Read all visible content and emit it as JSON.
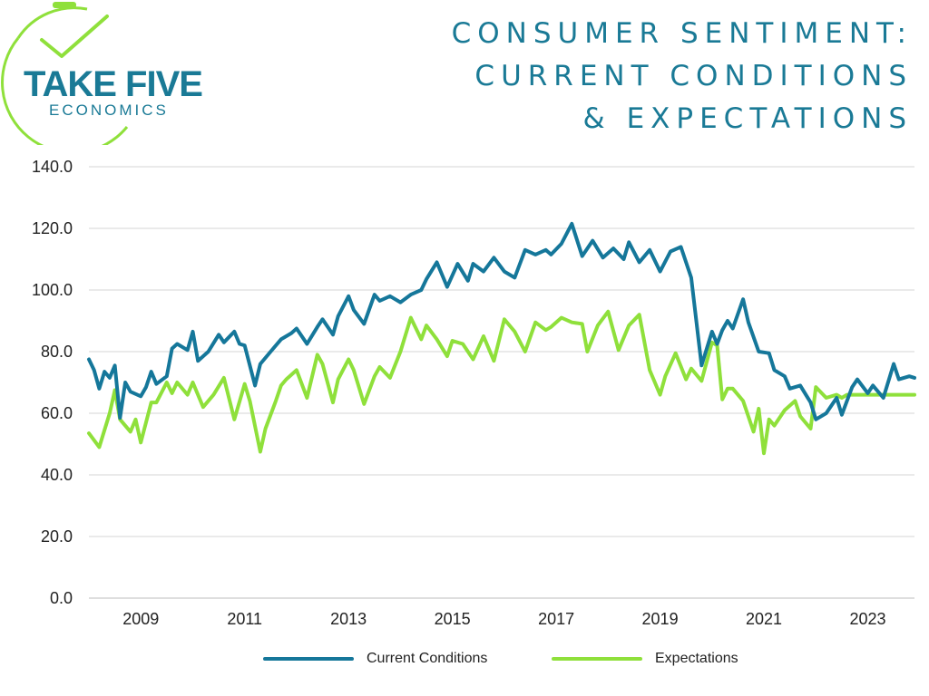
{
  "logo": {
    "name_top": "TAKE FIVE",
    "name_bottom": "ECONOMICS"
  },
  "title_lines": [
    "CONSUMER SENTIMENT:",
    "CURRENT CONDITIONS",
    "& EXPECTATIONS"
  ],
  "colors": {
    "current": "#15779a",
    "expectations": "#8fe03b",
    "grid": "#d6d6d6",
    "title": "#1a7a96"
  },
  "legend": {
    "current": "Current Conditions",
    "expectations": "Expectations"
  },
  "chart_data": {
    "type": "line",
    "title": "Consumer Sentiment: Current Conditions & Expectations",
    "xlabel": "",
    "ylabel": "",
    "ylim": [
      0,
      140
    ],
    "y_ticks": [
      "0.0",
      "20.0",
      "40.0",
      "60.0",
      "80.0",
      "100.0",
      "120.0",
      "140.0"
    ],
    "x_ticks": [
      "2009",
      "2011",
      "2013",
      "2015",
      "2017",
      "2019",
      "2021",
      "2023"
    ],
    "x_tick_positions": [
      2009.0,
      2011.0,
      2013.0,
      2015.0,
      2017.0,
      2019.0,
      2021.0,
      2023.0
    ],
    "xlim": [
      2008.0,
      2023.9
    ],
    "grid": true,
    "legend_position": "bottom",
    "series": [
      {
        "name": "Current Conditions",
        "x": [
          2008.0,
          2008.1,
          2008.2,
          2008.3,
          2008.4,
          2008.5,
          2008.6,
          2008.7,
          2008.8,
          2009.0,
          2009.1,
          2009.2,
          2009.3,
          2009.5,
          2009.6,
          2009.7,
          2009.9,
          2010.0,
          2010.1,
          2010.3,
          2010.5,
          2010.6,
          2010.8,
          2010.9,
          2011.0,
          2011.2,
          2011.3,
          2011.5,
          2011.7,
          2011.9,
          2012.0,
          2012.2,
          2012.4,
          2012.5,
          2012.7,
          2012.8,
          2013.0,
          2013.1,
          2013.3,
          2013.5,
          2013.6,
          2013.8,
          2014.0,
          2014.2,
          2014.4,
          2014.5,
          2014.7,
          2014.9,
          2015.1,
          2015.3,
          2015.4,
          2015.6,
          2015.8,
          2016.0,
          2016.2,
          2016.4,
          2016.6,
          2016.8,
          2016.9,
          2017.1,
          2017.3,
          2017.5,
          2017.7,
          2017.9,
          2018.1,
          2018.3,
          2018.4,
          2018.6,
          2018.8,
          2019.0,
          2019.2,
          2019.4,
          2019.6,
          2019.8,
          2020.0,
          2020.1,
          2020.2,
          2020.3,
          2020.4,
          2020.6,
          2020.7,
          2020.9,
          2021.1,
          2021.2,
          2021.4,
          2021.5,
          2021.7,
          2021.9,
          2022.0,
          2022.2,
          2022.4,
          2022.5,
          2022.7,
          2022.8,
          2023.0,
          2023.1,
          2023.3,
          2023.5,
          2023.6,
          2023.8,
          2023.9
        ],
        "values": [
          77.5,
          74.0,
          68.0,
          73.5,
          71.5,
          75.5,
          58.5,
          70.0,
          67.0,
          65.5,
          68.5,
          73.5,
          69.5,
          72.0,
          81.0,
          82.5,
          80.5,
          86.5,
          77.0,
          80.0,
          85.5,
          83.0,
          86.5,
          82.5,
          82.0,
          69.0,
          76.0,
          80.0,
          84.0,
          86.0,
          87.5,
          82.5,
          88.0,
          90.5,
          85.5,
          91.5,
          98.0,
          93.5,
          89.0,
          98.5,
          96.5,
          98.0,
          96.0,
          98.5,
          100.0,
          103.5,
          109.0,
          101.0,
          108.5,
          103.0,
          108.5,
          106.0,
          110.5,
          106.0,
          104.0,
          113.0,
          111.5,
          113.0,
          111.5,
          115.0,
          121.5,
          111.0,
          116.0,
          110.5,
          113.5,
          110.0,
          115.5,
          109.0,
          113.0,
          106.0,
          112.5,
          114.0,
          104.0,
          75.5,
          86.5,
          82.5,
          87.0,
          90.0,
          87.5,
          97.0,
          89.5,
          80.0,
          79.5,
          74.0,
          72.0,
          68.0,
          69.0,
          63.5,
          58.0,
          60.0,
          65.0,
          59.5,
          68.5,
          71.0,
          66.5,
          69.0,
          65.0,
          76.0,
          71.0,
          72.0,
          71.5
        ]
      },
      {
        "name": "Expectations",
        "x": [
          2008.0,
          2008.2,
          2008.4,
          2008.5,
          2008.6,
          2008.8,
          2008.9,
          2009.0,
          2009.2,
          2009.3,
          2009.5,
          2009.6,
          2009.7,
          2009.9,
          2010.0,
          2010.2,
          2010.4,
          2010.6,
          2010.8,
          2011.0,
          2011.1,
          2011.3,
          2011.4,
          2011.6,
          2011.7,
          2011.8,
          2012.0,
          2012.2,
          2012.4,
          2012.5,
          2012.7,
          2012.8,
          2013.0,
          2013.1,
          2013.3,
          2013.5,
          2013.6,
          2013.8,
          2014.0,
          2014.2,
          2014.4,
          2014.5,
          2014.7,
          2014.9,
          2015.0,
          2015.2,
          2015.4,
          2015.6,
          2015.8,
          2016.0,
          2016.2,
          2016.4,
          2016.6,
          2016.8,
          2016.9,
          2017.1,
          2017.3,
          2017.5,
          2017.6,
          2017.8,
          2018.0,
          2018.2,
          2018.4,
          2018.6,
          2018.8,
          2019.0,
          2019.1,
          2019.3,
          2019.5,
          2019.6,
          2019.8,
          2020.0,
          2020.1,
          2020.2,
          2020.3,
          2020.4,
          2020.6,
          2020.8,
          2020.9,
          2021.0,
          2021.1,
          2021.2,
          2021.4,
          2021.6,
          2021.7,
          2021.9,
          2022.0,
          2022.2,
          2022.4,
          2022.5,
          2022.6,
          2022.7,
          2022.8,
          2023.0,
          2023.2,
          2023.3,
          2023.5,
          2023.6,
          2023.7,
          2023.8,
          2023.9
        ],
        "values": [
          53.5,
          49.0,
          60.0,
          67.5,
          58.0,
          54.0,
          58.0,
          50.5,
          63.5,
          63.5,
          70.0,
          66.5,
          70.0,
          66.0,
          70.0,
          62.0,
          66.0,
          71.5,
          58.0,
          69.5,
          64.0,
          47.5,
          55.0,
          64.0,
          69.0,
          71.0,
          74.0,
          65.0,
          79.0,
          76.0,
          63.5,
          71.0,
          77.5,
          74.0,
          63.0,
          72.0,
          75.0,
          71.5,
          80.0,
          91.0,
          84.0,
          88.5,
          84.0,
          78.5,
          83.5,
          82.5,
          77.5,
          85.0,
          77.0,
          90.5,
          86.5,
          80.0,
          89.5,
          87.0,
          88.0,
          91.0,
          89.5,
          89.0,
          80.0,
          88.5,
          93.0,
          80.5,
          88.5,
          92.0,
          74.0,
          66.0,
          72.0,
          79.5,
          71.0,
          74.5,
          70.5,
          83.0,
          82.0,
          64.5,
          68.0,
          68.0,
          64.0,
          54.0,
          61.5,
          47.0,
          58.0,
          56.0,
          61.0,
          64.0,
          59.0,
          55.0,
          68.5,
          65.0,
          66.0,
          65.0,
          66.0,
          66.0,
          66.0,
          66.0,
          66.0,
          66.0,
          66.0,
          66.0,
          66.0,
          66.0,
          66.0
        ]
      }
    ]
  }
}
